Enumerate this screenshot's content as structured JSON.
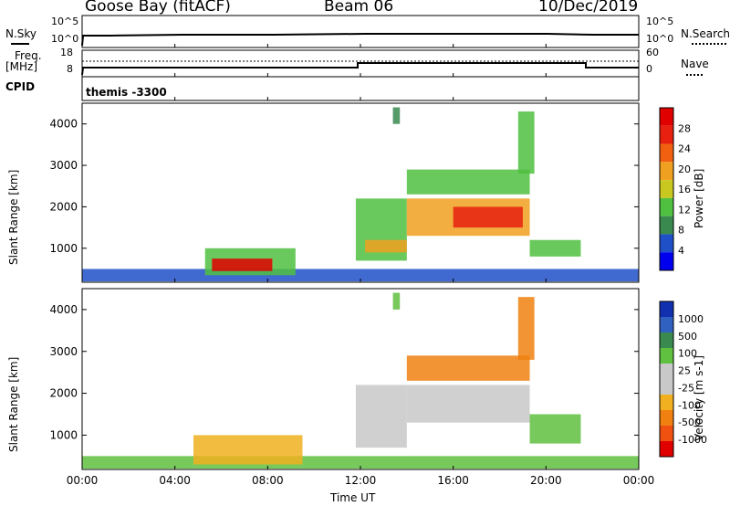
{
  "header": {
    "station": "Goose Bay (fitACF)",
    "beam": "Beam 06",
    "date": "10/Dec/2019"
  },
  "top_panels": {
    "nsky_label": "N.Sky",
    "nsky_ticks": [
      "10^5",
      "10^0"
    ],
    "nsearch_label": "N.Search",
    "nsearch_ticks": [
      "10^5",
      "10^0"
    ],
    "freq_label": "Freq.",
    "freq_unit": "[MHz]",
    "freq_ticks": [
      "18",
      "8"
    ],
    "nave_label": "Nave",
    "nave_ticks": [
      "60",
      "0"
    ],
    "cpid_label": "CPID",
    "cpid_text": "themis -3300"
  },
  "x_axis": {
    "label": "Time UT",
    "ticks": [
      "00:00",
      "04:00",
      "08:00",
      "12:00",
      "16:00",
      "20:00",
      "00:00"
    ]
  },
  "colors": {
    "power": [
      "#0000ee",
      "#2050c8",
      "#3a8a50",
      "#50c040",
      "#c8c820",
      "#f0a020",
      "#f06010",
      "#e82010",
      "#e00000"
    ],
    "velocity": [
      "#e00000",
      "#f05010",
      "#f08010",
      "#f0b020",
      "#c8c8c8",
      "#c8c8c8",
      "#60c040",
      "#3a8a50",
      "#3060c0",
      "#1030b0"
    ]
  },
  "chart_data": [
    {
      "type": "heatmap",
      "panel": "power",
      "xlabel": "",
      "ylabel": "Slant Range [km]",
      "colorbar_label": "Power [dB]",
      "colorbar_ticks": [
        "4",
        "8",
        "12",
        "16",
        "20",
        "24",
        "28"
      ],
      "xlim": [
        0,
        24
      ],
      "ylim": [
        180,
        4500
      ],
      "yticks": [
        "1000",
        "2000",
        "3000",
        "4000"
      ],
      "patches": [
        {
          "t0": 0,
          "t1": 24,
          "r0": 200,
          "r1": 500,
          "level": 1
        },
        {
          "t0": 5.3,
          "t1": 9.2,
          "r0": 350,
          "r1": 1000,
          "level": 3
        },
        {
          "t0": 5.6,
          "t1": 8.2,
          "r0": 450,
          "r1": 750,
          "level": 8
        },
        {
          "t0": 11.8,
          "t1": 14.0,
          "r0": 700,
          "r1": 2200,
          "level": 3
        },
        {
          "t0": 12.2,
          "t1": 14.0,
          "r0": 900,
          "r1": 1200,
          "level": 5
        },
        {
          "t0": 14.0,
          "t1": 19.3,
          "r0": 1300,
          "r1": 2200,
          "level": 5
        },
        {
          "t0": 16.0,
          "t1": 19.0,
          "r0": 1500,
          "r1": 2000,
          "level": 7
        },
        {
          "t0": 14.0,
          "t1": 19.3,
          "r0": 2300,
          "r1": 2900,
          "level": 3
        },
        {
          "t0": 18.8,
          "t1": 19.5,
          "r0": 2800,
          "r1": 4300,
          "level": 3
        },
        {
          "t0": 19.3,
          "t1": 21.5,
          "r0": 800,
          "r1": 1200,
          "level": 3
        },
        {
          "t0": 13.4,
          "t1": 13.7,
          "r0": 4000,
          "r1": 4400,
          "level": 2
        }
      ]
    },
    {
      "type": "heatmap",
      "panel": "velocity",
      "xlabel": "Time UT",
      "ylabel": "Slant Range [km]",
      "colorbar_label": "Velocity [m s-1]",
      "colorbar_ticks": [
        "1000",
        "500",
        "100",
        "25",
        "-25",
        "-100",
        "-500",
        "-1000"
      ],
      "xlim": [
        0,
        24
      ],
      "ylim": [
        180,
        4500
      ],
      "yticks": [
        "1000",
        "2000",
        "3000",
        "4000"
      ],
      "patches": [
        {
          "t0": 0,
          "t1": 24,
          "r0": 200,
          "r1": 500,
          "level": 6
        },
        {
          "t0": 4.8,
          "t1": 9.5,
          "r0": 300,
          "r1": 1000,
          "level": 3
        },
        {
          "t0": 11.8,
          "t1": 14.0,
          "r0": 700,
          "r1": 2200,
          "level": 4
        },
        {
          "t0": 14.0,
          "t1": 19.3,
          "r0": 1300,
          "r1": 2200,
          "level": 4
        },
        {
          "t0": 14.0,
          "t1": 19.3,
          "r0": 2300,
          "r1": 2900,
          "level": 2
        },
        {
          "t0": 18.8,
          "t1": 19.5,
          "r0": 2800,
          "r1": 4300,
          "level": 2
        },
        {
          "t0": 19.3,
          "t1": 21.5,
          "r0": 800,
          "r1": 1500,
          "level": 6
        },
        {
          "t0": 13.4,
          "t1": 13.7,
          "r0": 4000,
          "r1": 4400,
          "level": 6
        }
      ]
    }
  ]
}
